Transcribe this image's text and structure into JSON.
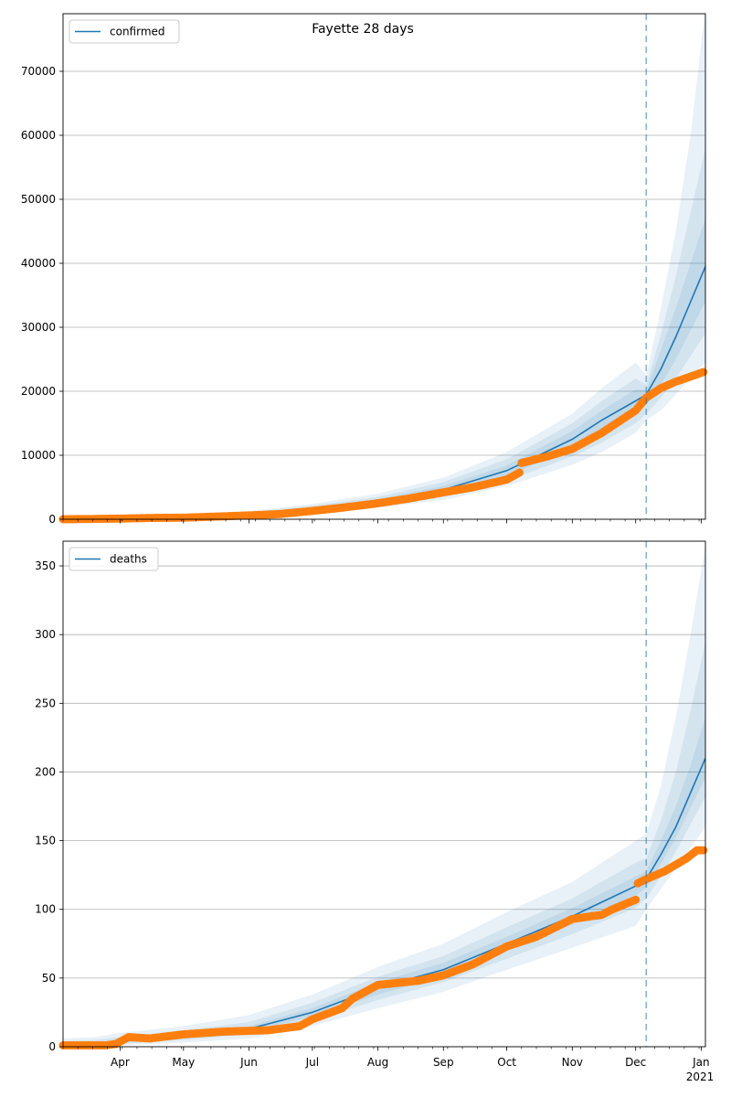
{
  "title": "Fayette 28 days",
  "colors": {
    "model_line": "#1f77b4",
    "observed": "#ff7f0e",
    "band": "#1f77b4",
    "grid": "#b0b0b0",
    "forecast_line": "#1f77b4"
  },
  "x_axis": {
    "tick_labels": [
      "Apr",
      "May",
      "Jun",
      "Jul",
      "Aug",
      "Sep",
      "Oct",
      "Nov",
      "Dec",
      "Jan"
    ],
    "tick_dates": [
      "2020-04-01",
      "2020-05-01",
      "2020-06-01",
      "2020-07-01",
      "2020-08-01",
      "2020-09-01",
      "2020-10-01",
      "2020-11-01",
      "2020-12-01",
      "2021-01-01"
    ],
    "year_label": "2021",
    "range": [
      "2020-03-05",
      "2021-01-03"
    ],
    "forecast_start": "2020-12-06"
  },
  "chart_data": [
    {
      "type": "line",
      "legend": "confirmed",
      "legend_position": "top-left",
      "ylim": [
        0,
        79000
      ],
      "yticks": [
        0,
        10000,
        20000,
        30000,
        40000,
        50000,
        60000,
        70000
      ],
      "grid": "horizontal",
      "model": {
        "name": "confirmed",
        "x": [
          "2020-03-05",
          "2020-04-01",
          "2020-05-01",
          "2020-06-01",
          "2020-07-01",
          "2020-08-01",
          "2020-09-01",
          "2020-10-01",
          "2020-11-01",
          "2020-11-15",
          "2020-12-01",
          "2020-12-06",
          "2020-12-13",
          "2020-12-20",
          "2020-12-27",
          "2021-01-03"
        ],
        "y": [
          0,
          100,
          300,
          800,
          1600,
          2800,
          4600,
          7600,
          12500,
          15500,
          18500,
          19500,
          23500,
          28500,
          34000,
          39500
        ]
      },
      "bands": [
        {
          "x": [
            "2020-03-05",
            "2020-04-01",
            "2020-05-01",
            "2020-06-01",
            "2020-07-01",
            "2020-08-01",
            "2020-09-01",
            "2020-10-01",
            "2020-11-01",
            "2020-11-15",
            "2020-12-01",
            "2020-12-06",
            "2020-12-13",
            "2020-12-20",
            "2020-12-27",
            "2021-01-03"
          ],
          "lower": [
            0,
            50,
            150,
            400,
            900,
            1800,
            3000,
            5200,
            8500,
            10500,
            13500,
            15500,
            17000,
            19500,
            22000,
            24500
          ],
          "upper": [
            400,
            400,
            600,
            1300,
            2400,
            4000,
            6500,
            10500,
            16500,
            20500,
            24500,
            22500,
            33000,
            45000,
            60000,
            80000
          ]
        },
        {
          "x": [
            "2020-03-05",
            "2020-04-01",
            "2020-05-01",
            "2020-06-01",
            "2020-07-01",
            "2020-08-01",
            "2020-09-01",
            "2020-10-01",
            "2020-11-01",
            "2020-11-15",
            "2020-12-01",
            "2020-12-06",
            "2020-12-13",
            "2020-12-20",
            "2020-12-27",
            "2021-01-03"
          ],
          "lower": [
            0,
            70,
            200,
            500,
            1100,
            2100,
            3500,
            6000,
            9800,
            12000,
            15000,
            16500,
            19000,
            22000,
            25500,
            29000
          ],
          "upper": [
            250,
            250,
            450,
            1100,
            2100,
            3500,
            5800,
            9400,
            15000,
            18500,
            22000,
            21000,
            29000,
            38000,
            48000,
            58000
          ]
        },
        {
          "x": [
            "2020-03-05",
            "2020-04-01",
            "2020-05-01",
            "2020-06-01",
            "2020-07-01",
            "2020-08-01",
            "2020-09-01",
            "2020-10-01",
            "2020-11-01",
            "2020-11-15",
            "2020-12-01",
            "2020-12-06",
            "2020-12-13",
            "2020-12-20",
            "2020-12-27",
            "2021-01-03"
          ],
          "lower": [
            0,
            85,
            250,
            650,
            1350,
            2450,
            4000,
            6800,
            11000,
            13500,
            16800,
            17800,
            21000,
            25000,
            29500,
            34000
          ],
          "upper": [
            120,
            150,
            380,
            950,
            1850,
            3150,
            5200,
            8400,
            13800,
            17000,
            20300,
            20200,
            26500,
            33000,
            40000,
            47000
          ]
        }
      ],
      "observed": {
        "name": "observed",
        "x": [
          "2020-03-05",
          "2020-03-20",
          "2020-04-01",
          "2020-04-15",
          "2020-05-01",
          "2020-05-15",
          "2020-06-01",
          "2020-06-15",
          "2020-07-01",
          "2020-07-15",
          "2020-08-01",
          "2020-08-15",
          "2020-09-01",
          "2020-09-15",
          "2020-10-01",
          "2020-10-07",
          "2020-10-08",
          "2020-10-20",
          "2020-11-01",
          "2020-11-15",
          "2020-12-01",
          "2020-12-06",
          "2020-12-13",
          "2020-12-20",
          "2020-12-27",
          "2021-01-02"
        ],
        "y": [
          0,
          50,
          100,
          200,
          250,
          400,
          600,
          800,
          1300,
          1800,
          2500,
          3200,
          4200,
          5000,
          6200,
          7300,
          8800,
          9800,
          11000,
          13500,
          17000,
          19000,
          20500,
          21500,
          22300,
          23000
        ]
      }
    },
    {
      "type": "line",
      "legend": "deaths",
      "legend_position": "top-left",
      "ylim": [
        0,
        368
      ],
      "yticks": [
        0,
        50,
        100,
        150,
        200,
        250,
        300,
        350
      ],
      "grid": "horizontal",
      "model": {
        "name": "deaths",
        "x": [
          "2020-03-05",
          "2020-03-20",
          "2020-04-01",
          "2020-05-01",
          "2020-06-01",
          "2020-07-01",
          "2020-08-01",
          "2020-09-01",
          "2020-10-01",
          "2020-11-01",
          "2020-12-01",
          "2020-12-06",
          "2020-12-13",
          "2020-12-20",
          "2020-12-27",
          "2021-01-03"
        ],
        "y": [
          0,
          1,
          4,
          8,
          13,
          25,
          43,
          56,
          75,
          95,
          117,
          122,
          140,
          160,
          185,
          210
        ]
      },
      "bands": [
        {
          "x": [
            "2020-03-05",
            "2020-03-20",
            "2020-04-01",
            "2020-05-01",
            "2020-06-01",
            "2020-07-01",
            "2020-08-01",
            "2020-09-01",
            "2020-10-01",
            "2020-11-01",
            "2020-12-01",
            "2020-12-06",
            "2020-12-13",
            "2020-12-20",
            "2020-12-27",
            "2021-01-03"
          ],
          "lower": [
            0,
            0,
            1,
            3,
            6,
            15,
            28,
            40,
            56,
            72,
            88,
            100,
            115,
            130,
            145,
            160
          ],
          "upper": [
            6,
            7,
            10,
            15,
            23,
            38,
            58,
            75,
            98,
            120,
            150,
            155,
            190,
            240,
            300,
            365
          ]
        },
        {
          "x": [
            "2020-03-05",
            "2020-03-20",
            "2020-04-01",
            "2020-05-01",
            "2020-06-01",
            "2020-07-01",
            "2020-08-01",
            "2020-09-01",
            "2020-10-01",
            "2020-11-01",
            "2020-12-01",
            "2020-12-06",
            "2020-12-13",
            "2020-12-20",
            "2020-12-27",
            "2021-01-03"
          ],
          "lower": [
            0,
            0,
            2,
            5,
            9,
            19,
            34,
            47,
            64,
            82,
            101,
            108,
            124,
            142,
            162,
            182
          ],
          "upper": [
            4,
            5,
            7,
            12,
            18,
            32,
            51,
            66,
            87,
            108,
            134,
            137,
            165,
            200,
            245,
            295
          ]
        },
        {
          "x": [
            "2020-03-05",
            "2020-03-20",
            "2020-04-01",
            "2020-05-01",
            "2020-06-01",
            "2020-07-01",
            "2020-08-01",
            "2020-09-01",
            "2020-10-01",
            "2020-11-01",
            "2020-12-01",
            "2020-12-06",
            "2020-12-13",
            "2020-12-20",
            "2020-12-27",
            "2021-01-03"
          ],
          "lower": [
            0,
            0,
            3,
            6,
            11,
            22,
            38,
            51,
            70,
            89,
            110,
            116,
            133,
            152,
            174,
            196
          ],
          "upper": [
            2,
            3,
            5,
            10,
            15,
            28,
            47,
            61,
            80,
            101,
            124,
            128,
            150,
            175,
            205,
            240
          ]
        }
      ],
      "observed": {
        "name": "observed",
        "x": [
          "2020-03-05",
          "2020-03-25",
          "2020-03-30",
          "2020-04-05",
          "2020-04-15",
          "2020-05-01",
          "2020-05-20",
          "2020-06-10",
          "2020-06-25",
          "2020-07-01",
          "2020-07-15",
          "2020-07-20",
          "2020-08-01",
          "2020-08-20",
          "2020-09-01",
          "2020-09-15",
          "2020-10-01",
          "2020-10-15",
          "2020-11-01",
          "2020-11-15",
          "2020-11-20",
          "2020-12-01",
          "2020-12-02",
          "2020-12-06",
          "2020-12-15",
          "2020-12-25",
          "2020-12-30",
          "2021-01-02"
        ],
        "y": [
          1,
          1,
          2,
          7,
          6,
          9,
          11,
          12,
          15,
          20,
          28,
          35,
          45,
          48,
          52,
          60,
          73,
          80,
          93,
          96,
          100,
          107,
          119,
          122,
          128,
          137,
          143,
          143
        ]
      }
    }
  ]
}
